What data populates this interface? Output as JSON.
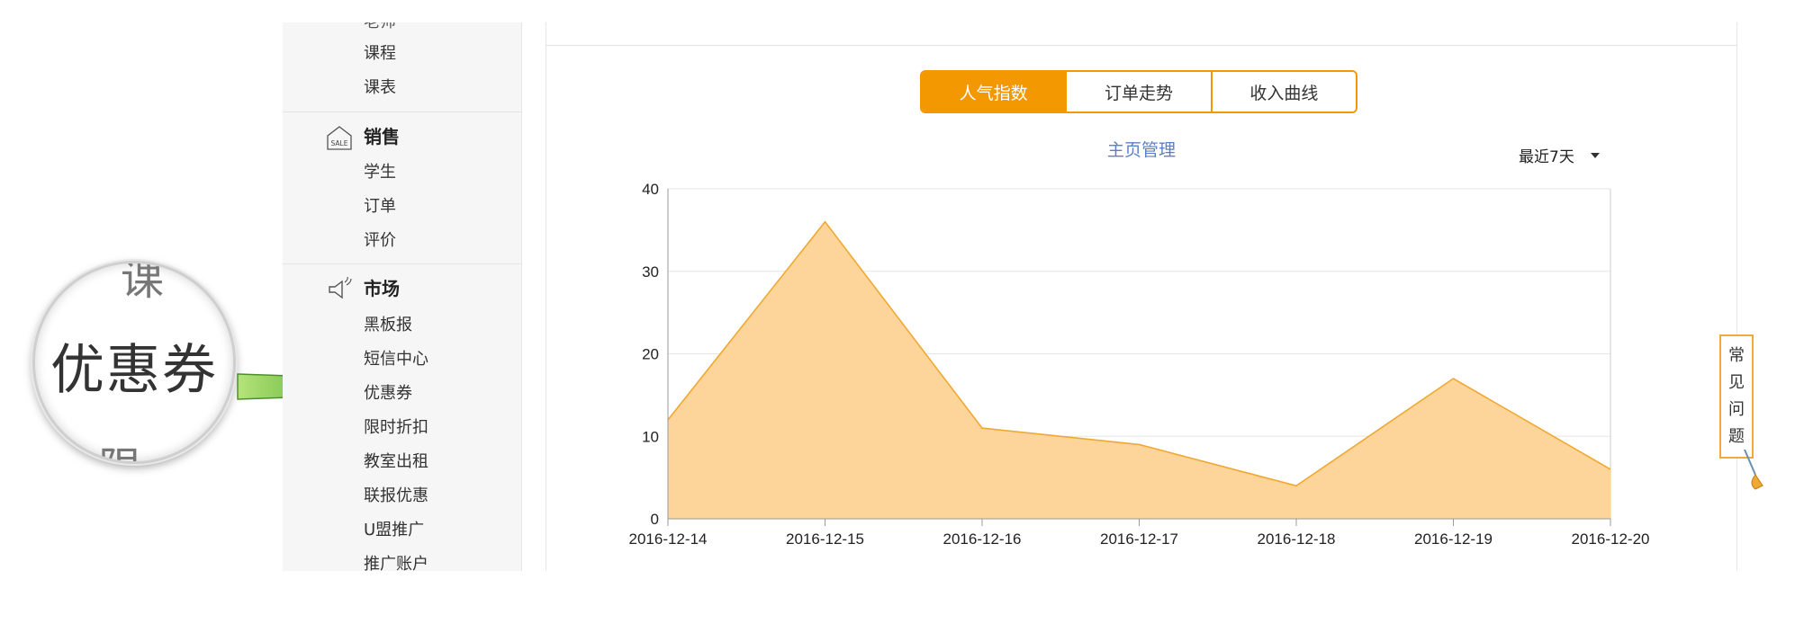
{
  "sidebar": {
    "partial_top_item": "老师",
    "group1": [
      "课程",
      "课表"
    ],
    "sales": {
      "title": "销售",
      "icon": "sale-tag-icon",
      "icon_text": "SALE",
      "items": [
        "学生",
        "订单",
        "评价"
      ]
    },
    "market": {
      "title": "市场",
      "icon": "megaphone-icon",
      "items": [
        "黑板报",
        "短信中心",
        "优惠券",
        "限时折扣",
        "教室出租",
        "联报优惠",
        "U盟推广",
        "推广账户"
      ]
    }
  },
  "callout": {
    "magnified_text": "优惠券",
    "pointer": "green-arrow-icon"
  },
  "tabs": [
    {
      "label": "人气指数",
      "active": true
    },
    {
      "label": "订单走势",
      "active": false
    },
    {
      "label": "收入曲线",
      "active": false
    }
  ],
  "chart_header": {
    "title": "主页管理",
    "range_label": "最近7天"
  },
  "faq": {
    "chars": [
      "常",
      "见",
      "问",
      "题"
    ]
  },
  "colors": {
    "accent": "#f39800",
    "area_fill": "#fdd59a",
    "area_line": "#f0a830",
    "title_blue": "#5b7fc8"
  },
  "chart_data": {
    "type": "area",
    "title": "主页管理",
    "x": [
      "2016-12-14",
      "2016-12-15",
      "2016-12-16",
      "2016-12-17",
      "2016-12-18",
      "2016-12-19",
      "2016-12-20"
    ],
    "series": [
      {
        "values": [
          12,
          36,
          11,
          9,
          4,
          17,
          6
        ]
      }
    ],
    "ylim": [
      0,
      40
    ],
    "yticks": [
      0,
      10,
      20,
      30,
      40
    ],
    "grid": true,
    "xlabel": "",
    "ylabel": ""
  }
}
